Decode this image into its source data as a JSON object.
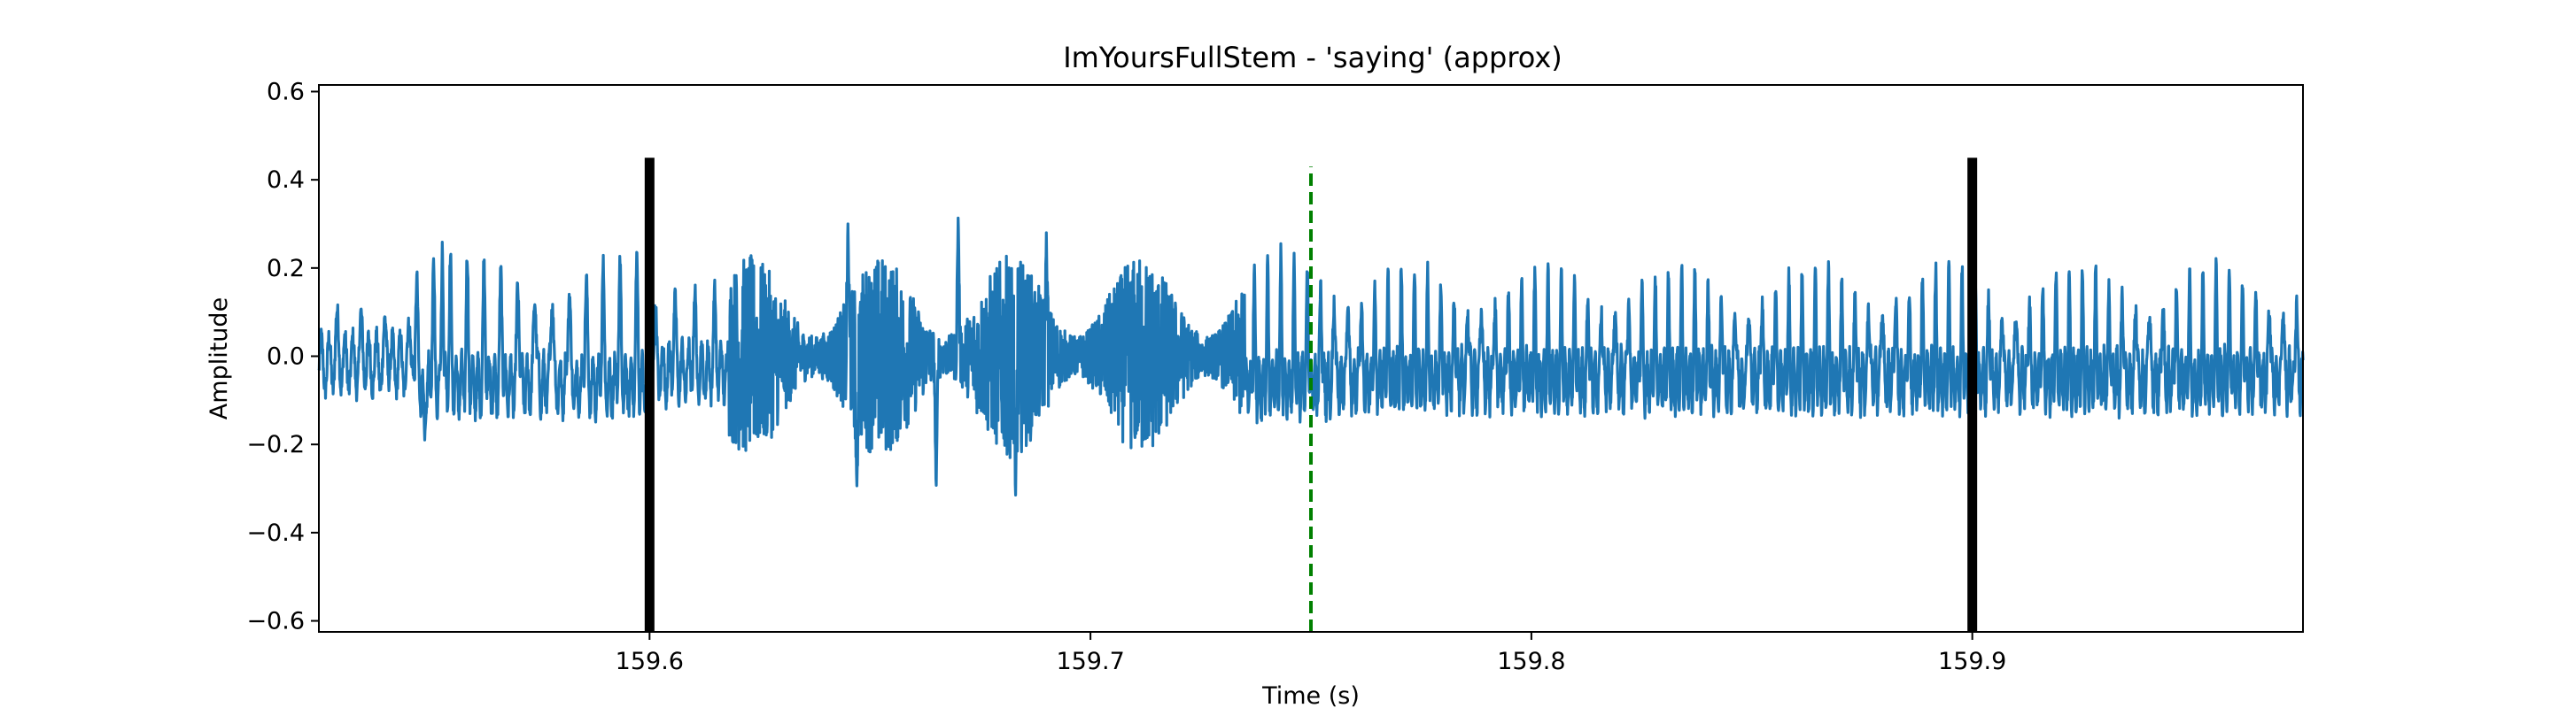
{
  "chart_data": {
    "type": "line",
    "title": "ImYoursFullStem - 'saying' (approx)",
    "xlabel": "Time (s)",
    "ylabel": "Amplitude",
    "xlim": [
      159.525,
      159.975
    ],
    "ylim": [
      -0.625,
      0.615
    ],
    "xticks": [
      159.6,
      159.7,
      159.8,
      159.9
    ],
    "xtick_labels": [
      "159.6",
      "159.7",
      "159.8",
      "159.9"
    ],
    "yticks": [
      -0.6,
      -0.4,
      -0.2,
      0.0,
      0.2,
      0.4,
      0.6
    ],
    "ytick_labels": [
      "−0.6",
      "−0.4",
      "−0.2",
      "0.0",
      "0.2",
      "0.4",
      "0.6"
    ],
    "grid": false,
    "series": [
      {
        "color": "#1f77b4",
        "segments": [
          {
            "t0": 159.525,
            "t1": 159.546,
            "amp": 0.05,
            "freq": 180
          },
          {
            "t0": 159.546,
            "t1": 159.6,
            "amp": 0.19,
            "freq": 260
          },
          {
            "t0": 159.6,
            "t1": 159.618,
            "amp": 0.1,
            "freq": 220
          },
          {
            "t0": 159.618,
            "t1": 159.735,
            "amp": 0.23,
            "freq": 2600
          },
          {
            "t0": 159.735,
            "t1": 159.76,
            "amp": 0.19,
            "freq": 330
          },
          {
            "t0": 159.76,
            "t1": 159.975,
            "amp": 0.16,
            "freq": 330
          }
        ],
        "peaks": [
          {
            "t": 159.553,
            "v": 0.28
          },
          {
            "t": 159.549,
            "v": -0.19
          },
          {
            "t": 159.645,
            "v": 0.3
          },
          {
            "t": 159.67,
            "v": 0.33
          },
          {
            "t": 159.647,
            "v": -0.32
          },
          {
            "t": 159.665,
            "v": -0.31
          },
          {
            "t": 159.683,
            "v": -0.34
          },
          {
            "t": 159.69,
            "v": 0.28
          }
        ]
      }
    ],
    "vlines": [
      {
        "x": 159.6,
        "ymin": -0.625,
        "ymax": 0.45,
        "color": "#000000",
        "style": "solid"
      },
      {
        "x": 159.9,
        "ymin": -0.625,
        "ymax": 0.45,
        "color": "#000000",
        "style": "solid"
      },
      {
        "x": 159.75,
        "ymin": -0.625,
        "ymax": 0.43,
        "color": "#008000",
        "style": "dashed"
      }
    ]
  }
}
